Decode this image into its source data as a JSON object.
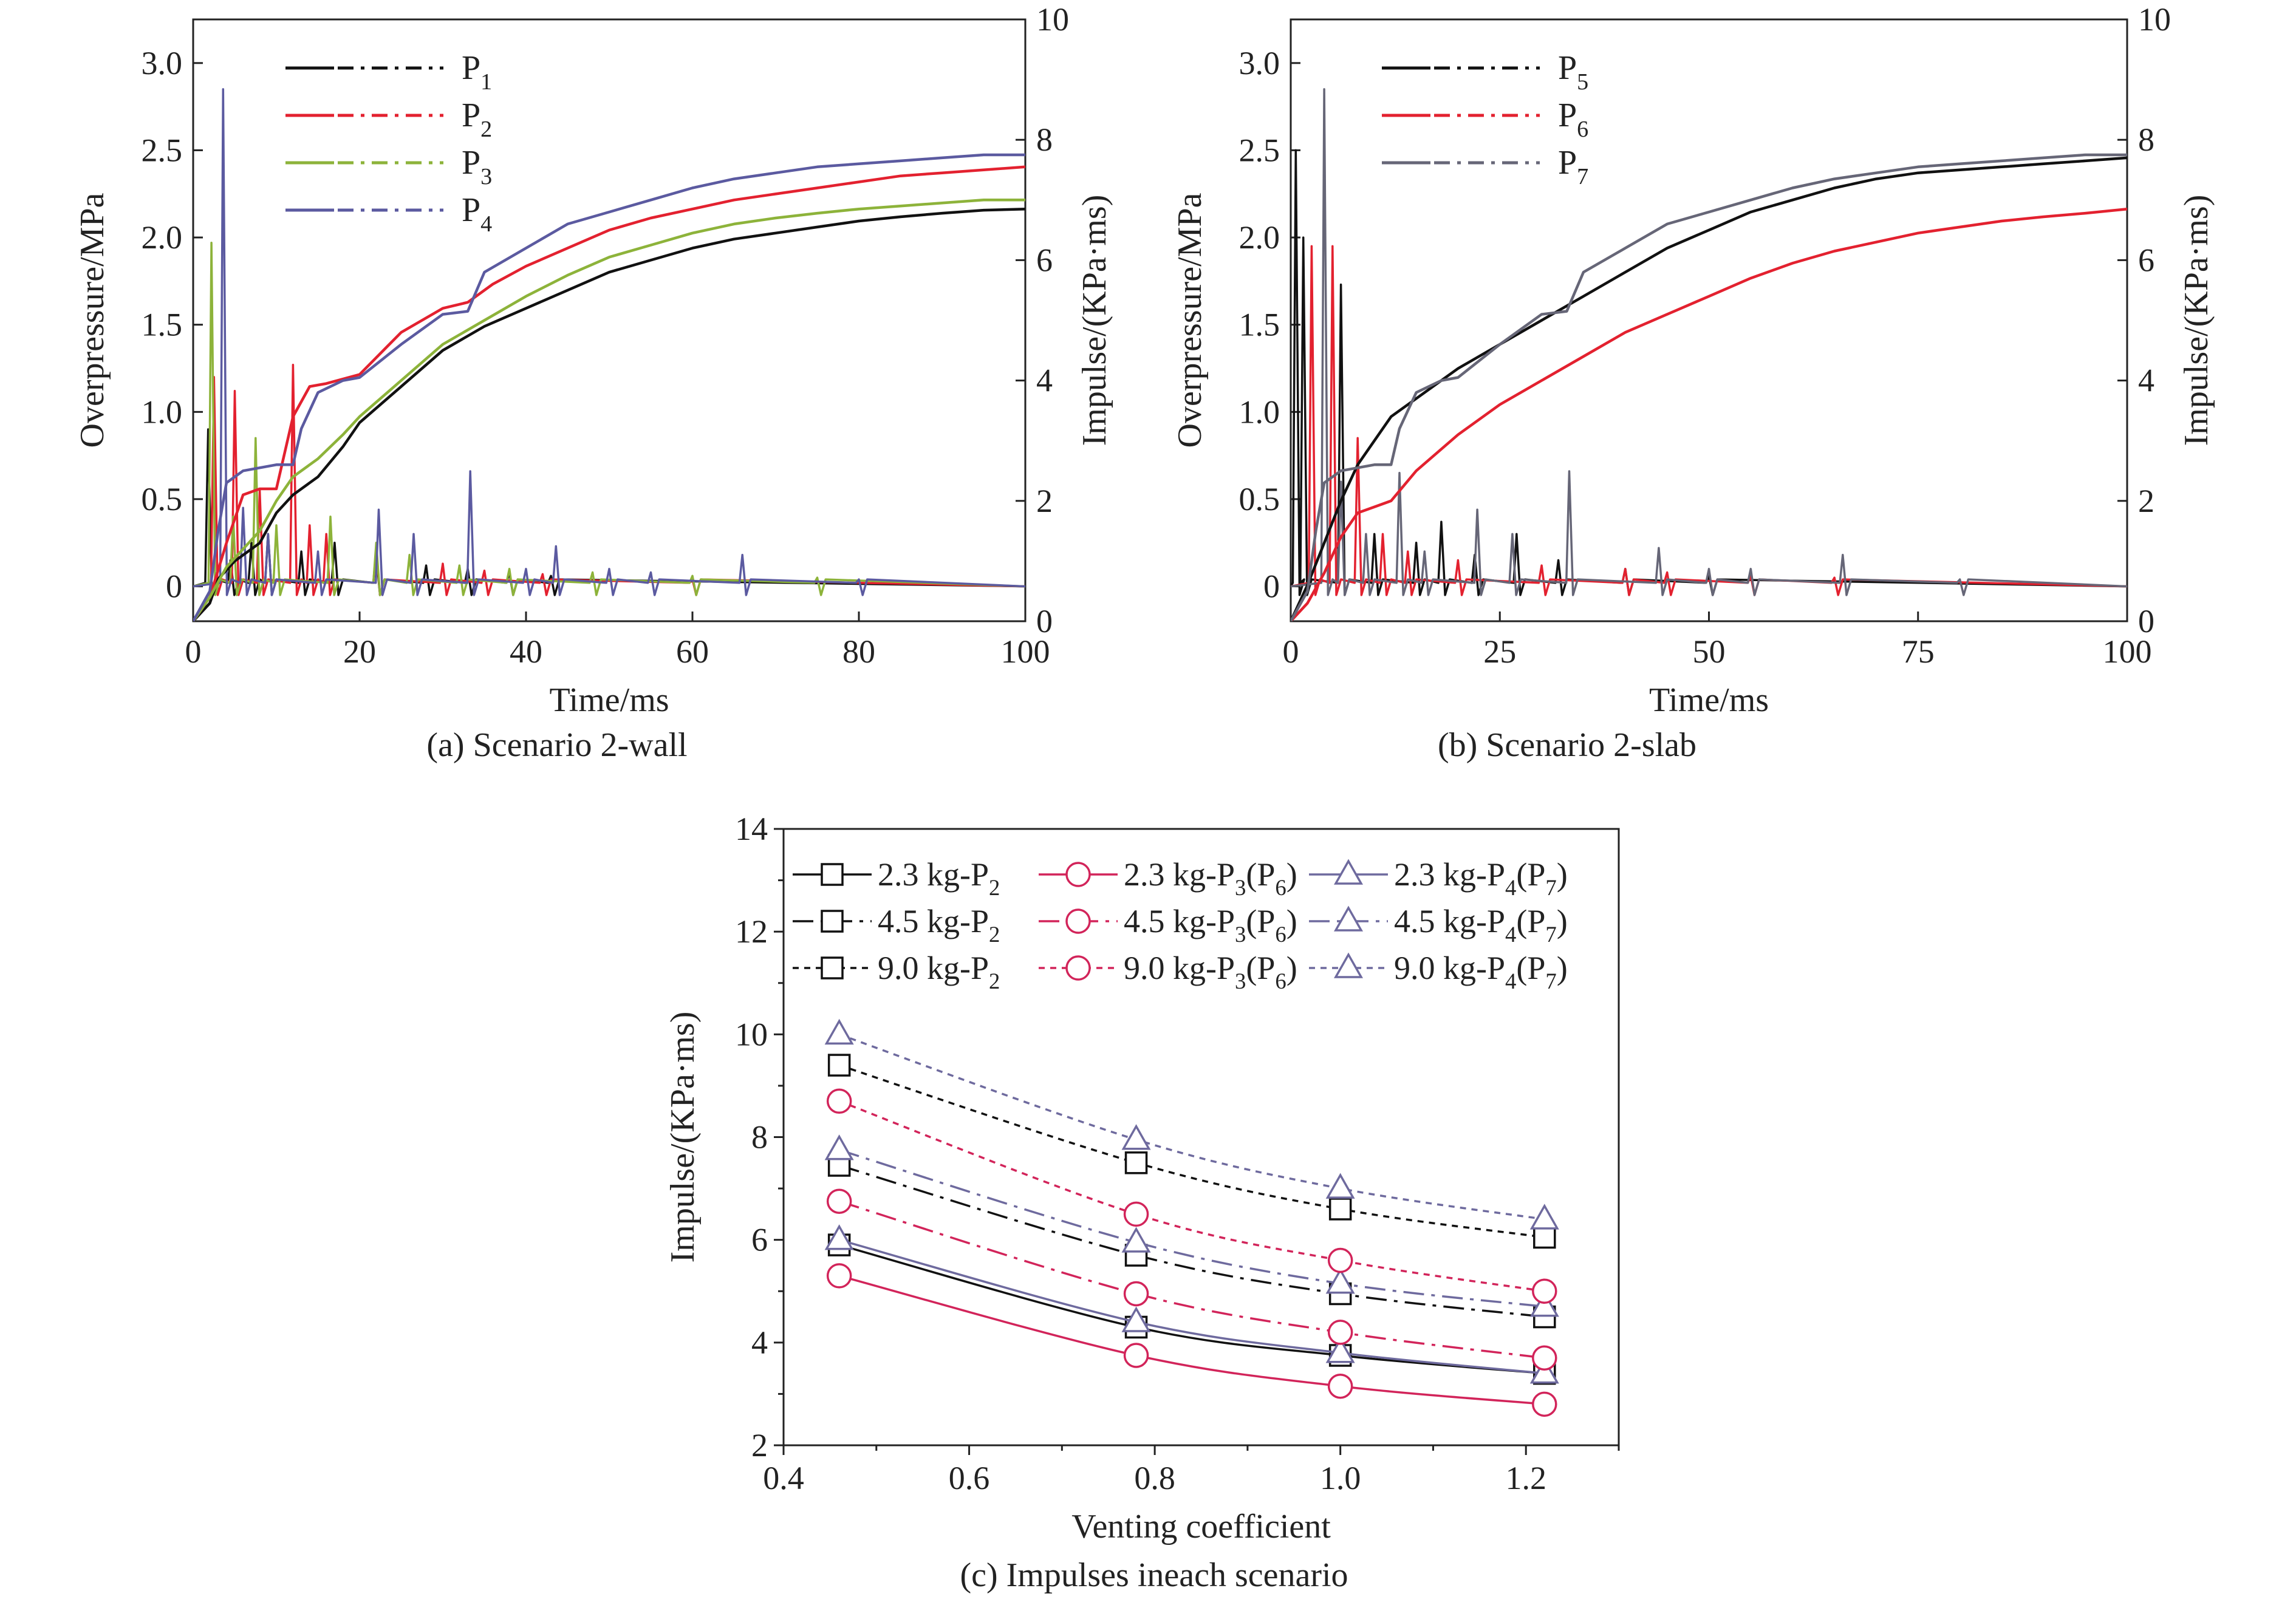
{
  "colors": {
    "axis": "#222222",
    "P1": "#111111",
    "P2": "#e3212f",
    "P3": "#8db33a",
    "P4": "#5b5aa0",
    "P5": "#111111",
    "P6": "#e3212f",
    "P7": "#666677",
    "c_p2": "#111111",
    "c_p3": "#d2245a",
    "c_p4": "#6e6a9e"
  },
  "chart_data": [
    {
      "id": "a",
      "type": "line",
      "caption": "(a) Scenario 2-wall",
      "xlabel": "Time/ms",
      "ylabel": "Overpressure/MPa",
      "y2label": "Impulse/(KPa·ms)",
      "xlim": [
        0,
        100
      ],
      "ylim": [
        -0.2,
        3.25
      ],
      "y2lim": [
        0,
        10
      ],
      "xticks": [
        "0",
        "20",
        "40",
        "60",
        "80",
        "100"
      ],
      "yticks": [
        "0",
        "0.5",
        "1.0",
        "1.5",
        "2.0",
        "2.5",
        "3.0"
      ],
      "y2ticks": [
        "0",
        "2",
        "4",
        "6",
        "8",
        "10"
      ],
      "legend": [
        {
          "key": "P1",
          "base": "P",
          "sub": "1"
        },
        {
          "key": "P2",
          "base": "P",
          "sub": "2"
        },
        {
          "key": "P3",
          "base": "P",
          "sub": "3"
        },
        {
          "key": "P4",
          "base": "P",
          "sub": "4"
        }
      ],
      "impulse_series": [
        {
          "key": "P1",
          "x": [
            0,
            2,
            3,
            5,
            8,
            10,
            12,
            15,
            18,
            20,
            25,
            30,
            35,
            40,
            45,
            50,
            55,
            60,
            65,
            70,
            75,
            80,
            85,
            90,
            95,
            100
          ],
          "y": [
            0,
            0.3,
            0.7,
            1.0,
            1.3,
            1.8,
            2.1,
            2.4,
            2.9,
            3.3,
            3.9,
            4.5,
            4.9,
            5.2,
            5.5,
            5.8,
            6.0,
            6.2,
            6.35,
            6.45,
            6.55,
            6.65,
            6.72,
            6.78,
            6.83,
            6.85
          ]
        },
        {
          "key": "P2",
          "x": [
            0,
            2,
            4,
            6,
            8,
            10,
            12,
            14,
            16,
            20,
            25,
            30,
            33,
            36,
            40,
            45,
            50,
            55,
            60,
            65,
            70,
            75,
            80,
            85,
            90,
            95,
            100
          ],
          "y": [
            0,
            0.4,
            1.3,
            2.1,
            2.2,
            2.2,
            3.4,
            3.9,
            3.95,
            4.1,
            4.8,
            5.2,
            5.3,
            5.6,
            5.9,
            6.2,
            6.5,
            6.7,
            6.85,
            7.0,
            7.1,
            7.2,
            7.3,
            7.4,
            7.45,
            7.5,
            7.55
          ]
        },
        {
          "key": "P3",
          "x": [
            0,
            2,
            4,
            6,
            8,
            10,
            12,
            15,
            18,
            20,
            25,
            30,
            35,
            40,
            45,
            50,
            55,
            60,
            65,
            70,
            75,
            80,
            85,
            90,
            95,
            100
          ],
          "y": [
            0,
            0.4,
            0.9,
            1.2,
            1.5,
            2.0,
            2.4,
            2.7,
            3.1,
            3.4,
            4.0,
            4.6,
            5.0,
            5.4,
            5.75,
            6.05,
            6.25,
            6.45,
            6.6,
            6.7,
            6.78,
            6.85,
            6.9,
            6.95,
            7.0,
            7.0
          ]
        },
        {
          "key": "P4",
          "x": [
            0,
            2,
            3,
            4,
            6,
            10,
            12,
            13,
            15,
            18,
            20,
            25,
            30,
            33,
            35,
            40,
            45,
            50,
            55,
            60,
            65,
            70,
            75,
            80,
            85,
            90,
            95,
            100
          ],
          "y": [
            0,
            0.5,
            1.5,
            2.3,
            2.5,
            2.6,
            2.6,
            3.2,
            3.8,
            4.0,
            4.05,
            4.6,
            5.1,
            5.15,
            5.8,
            6.2,
            6.6,
            6.8,
            7.0,
            7.2,
            7.35,
            7.45,
            7.55,
            7.6,
            7.65,
            7.7,
            7.75,
            7.75
          ]
        }
      ],
      "spike_series": [
        {
          "key": "P1",
          "peaks": [
            [
              1.8,
              0.9
            ],
            [
              4.5,
              0.15
            ],
            [
              7,
              0.25
            ],
            [
              9,
              0.3
            ],
            [
              13,
              0.2
            ],
            [
              17,
              0.25
            ],
            [
              22,
              0.18
            ],
            [
              28,
              0.12
            ],
            [
              33,
              0.1
            ],
            [
              38,
              0.08
            ],
            [
              43,
              0.06
            ]
          ]
        },
        {
          "key": "P2",
          "peaks": [
            [
              2.5,
              1.2
            ],
            [
              5,
              1.12
            ],
            [
              8,
              0.55
            ],
            [
              12,
              1.27
            ],
            [
              14,
              0.35
            ],
            [
              16,
              0.3
            ],
            [
              22,
              0.22
            ],
            [
              30,
              0.13
            ],
            [
              35,
              0.09
            ],
            [
              42,
              0.07
            ],
            [
              60,
              0.04
            ]
          ]
        },
        {
          "key": "P3",
          "peaks": [
            [
              2.2,
              1.97
            ],
            [
              4.8,
              0.4
            ],
            [
              7.5,
              0.85
            ],
            [
              10,
              0.35
            ],
            [
              16.5,
              0.4
            ],
            [
              22,
              0.25
            ],
            [
              26,
              0.18
            ],
            [
              32,
              0.12
            ],
            [
              38,
              0.1
            ],
            [
              48,
              0.08
            ],
            [
              60,
              0.06
            ],
            [
              75,
              0.05
            ]
          ]
        },
        {
          "key": "P4",
          "peaks": [
            [
              3.6,
              2.85
            ],
            [
              6,
              0.45
            ],
            [
              9,
              0.3
            ],
            [
              15,
              0.2
            ],
            [
              22.3,
              0.44
            ],
            [
              26.5,
              0.3
            ],
            [
              33.3,
              0.66
            ],
            [
              40,
              0.1
            ],
            [
              43.6,
              0.23
            ],
            [
              50,
              0.1
            ],
            [
              55,
              0.08
            ],
            [
              66,
              0.18
            ],
            [
              80,
              0.04
            ]
          ]
        }
      ]
    },
    {
      "id": "b",
      "type": "line",
      "caption": "(b) Scenario 2-slab",
      "xlabel": "Time/ms",
      "ylabel": "Overpressure/MPa",
      "y2label": "Impulse/(KPa·ms)",
      "xlim": [
        0,
        100
      ],
      "ylim": [
        -0.2,
        3.25
      ],
      "y2lim": [
        0,
        10
      ],
      "xticks": [
        "0",
        "25",
        "50",
        "75",
        "100"
      ],
      "yticks": [
        "0",
        "0.5",
        "1.0",
        "1.5",
        "2.0",
        "2.5",
        "3.0"
      ],
      "y2ticks": [
        "0",
        "2",
        "4",
        "6",
        "8",
        "10"
      ],
      "legend": [
        {
          "key": "P5",
          "base": "P",
          "sub": "5"
        },
        {
          "key": "P6",
          "base": "P",
          "sub": "6"
        },
        {
          "key": "P7",
          "base": "P",
          "sub": "7"
        }
      ],
      "impulse_series": [
        {
          "key": "P5",
          "x": [
            0,
            2,
            4,
            6,
            8,
            10,
            12,
            15,
            20,
            25,
            30,
            35,
            40,
            45,
            50,
            55,
            60,
            65,
            70,
            75,
            80,
            85,
            90,
            95,
            100
          ],
          "y": [
            0,
            0.6,
            1.3,
            2.0,
            2.6,
            3.0,
            3.4,
            3.7,
            4.2,
            4.6,
            5.0,
            5.4,
            5.8,
            6.2,
            6.5,
            6.8,
            7.0,
            7.2,
            7.35,
            7.45,
            7.5,
            7.55,
            7.6,
            7.65,
            7.7
          ]
        },
        {
          "key": "P6",
          "x": [
            0,
            2,
            4,
            6,
            8,
            10,
            12,
            15,
            20,
            25,
            30,
            35,
            40,
            45,
            50,
            55,
            60,
            65,
            70,
            75,
            80,
            85,
            90,
            95,
            100
          ],
          "y": [
            0,
            0.3,
            0.8,
            1.4,
            1.8,
            1.9,
            2.0,
            2.5,
            3.1,
            3.6,
            4.0,
            4.4,
            4.8,
            5.1,
            5.4,
            5.7,
            5.95,
            6.15,
            6.3,
            6.45,
            6.55,
            6.65,
            6.72,
            6.78,
            6.85
          ]
        },
        {
          "key": "P7",
          "x": [
            0,
            2,
            3,
            4,
            6,
            10,
            12,
            13,
            15,
            18,
            20,
            25,
            30,
            33,
            35,
            40,
            45,
            50,
            55,
            60,
            65,
            70,
            75,
            80,
            85,
            90,
            95,
            100
          ],
          "y": [
            0,
            0.5,
            1.5,
            2.3,
            2.5,
            2.6,
            2.6,
            3.2,
            3.8,
            4.0,
            4.05,
            4.6,
            5.1,
            5.15,
            5.8,
            6.2,
            6.6,
            6.8,
            7.0,
            7.2,
            7.35,
            7.45,
            7.55,
            7.6,
            7.65,
            7.7,
            7.75,
            7.75
          ]
        }
      ],
      "spike_series": [
        {
          "key": "P5",
          "peaks": [
            [
              0.6,
              2.5
            ],
            [
              1.5,
              2.0
            ],
            [
              6,
              1.73
            ],
            [
              10,
              0.3
            ],
            [
              15,
              0.25
            ],
            [
              18,
              0.37
            ],
            [
              22,
              0.18
            ],
            [
              27,
              0.3
            ],
            [
              32,
              0.15
            ],
            [
              40,
              0.1
            ],
            [
              50,
              0.06
            ]
          ]
        },
        {
          "key": "P6",
          "peaks": [
            [
              2.5,
              1.95
            ],
            [
              5,
              1.95
            ],
            [
              8,
              0.85
            ],
            [
              11,
              0.3
            ],
            [
              14,
              0.2
            ],
            [
              20,
              0.15
            ],
            [
              30,
              0.12
            ],
            [
              40,
              0.1
            ],
            [
              45,
              0.08
            ],
            [
              55,
              0.06
            ],
            [
              65,
              0.05
            ]
          ]
        },
        {
          "key": "P7",
          "peaks": [
            [
              4,
              2.85
            ],
            [
              6,
              0.6
            ],
            [
              9,
              0.3
            ],
            [
              13,
              0.65
            ],
            [
              16,
              0.2
            ],
            [
              22.3,
              0.44
            ],
            [
              26.5,
              0.3
            ],
            [
              33.3,
              0.66
            ],
            [
              44,
              0.22
            ],
            [
              50,
              0.1
            ],
            [
              55,
              0.1
            ],
            [
              66,
              0.18
            ],
            [
              80,
              0.04
            ]
          ]
        }
      ]
    },
    {
      "id": "c",
      "type": "line",
      "caption": "(c) Impulses ineach scenario",
      "xlabel": "Venting coefficient",
      "ylabel": "Impulse/(KPa·ms)",
      "xlim": [
        0.4,
        1.3
      ],
      "ylim": [
        2,
        14
      ],
      "xticks": [
        "0.4",
        "0.6",
        "0.8",
        "1.0",
        "1.2"
      ],
      "yticks": [
        "2",
        "4",
        "6",
        "8",
        "10",
        "12",
        "14"
      ],
      "x": [
        0.46,
        0.78,
        1.0,
        1.22
      ],
      "series": [
        {
          "name": "2.3 kg-P",
          "sub": "2",
          "tail": "",
          "marker": "square",
          "style": "solid",
          "color_key": "c_p2",
          "values": [
            5.9,
            4.3,
            3.75,
            3.4
          ]
        },
        {
          "name": "2.3 kg-P",
          "sub": "3",
          "tail": "(P6)",
          "marker": "circle",
          "style": "solid",
          "color_key": "c_p3",
          "values": [
            5.3,
            3.75,
            3.15,
            2.8
          ]
        },
        {
          "name": "2.3 kg-P",
          "sub": "4",
          "tail": "(P7)",
          "marker": "triangle",
          "style": "solid",
          "color_key": "c_p4",
          "values": [
            6.0,
            4.4,
            3.8,
            3.4
          ]
        },
        {
          "name": "4.5 kg-P",
          "sub": "2",
          "tail": "",
          "marker": "square",
          "style": "dashdot",
          "color_key": "c_p2",
          "values": [
            7.45,
            5.7,
            4.95,
            4.5
          ]
        },
        {
          "name": "4.5 kg-P",
          "sub": "3",
          "tail": "(P6)",
          "marker": "circle",
          "style": "dashdot",
          "color_key": "c_p3",
          "values": [
            6.75,
            4.95,
            4.2,
            3.7
          ]
        },
        {
          "name": "4.5 kg-P",
          "sub": "4",
          "tail": "(P7)",
          "marker": "triangle",
          "style": "dashdot",
          "color_key": "c_p4",
          "values": [
            7.75,
            5.95,
            5.15,
            4.7
          ]
        },
        {
          "name": "9.0 kg-P",
          "sub": "2",
          "tail": "",
          "marker": "square",
          "style": "dotted",
          "color_key": "c_p2",
          "values": [
            9.4,
            7.5,
            6.6,
            6.05
          ]
        },
        {
          "name": "9.0 kg-P",
          "sub": "3",
          "tail": "(P6)",
          "marker": "circle",
          "style": "dotted",
          "color_key": "c_p3",
          "values": [
            8.7,
            6.5,
            5.6,
            5.0
          ]
        },
        {
          "name": "9.0 kg-P",
          "sub": "4",
          "tail": "(P7)",
          "marker": "triangle",
          "style": "dotted",
          "color_key": "c_p4",
          "values": [
            10.0,
            7.95,
            7.0,
            6.4
          ]
        }
      ]
    }
  ]
}
